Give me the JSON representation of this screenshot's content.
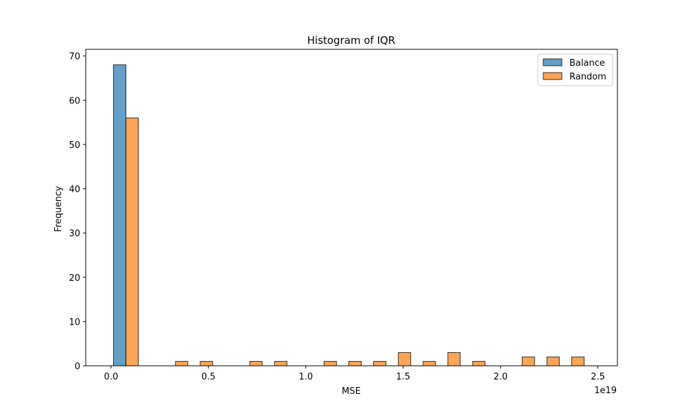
{
  "chart_data": {
    "type": "bar",
    "title": "Histogram of IQR",
    "xlabel": "MSE",
    "ylabel": "Frequency",
    "x_offset_label": "1e19",
    "xlim": [
      -0.13,
      2.6
    ],
    "ylim": [
      0,
      71.5
    ],
    "x_ticks": [
      {
        "value": 0.0,
        "label": "0.0"
      },
      {
        "value": 0.5,
        "label": "0.5"
      },
      {
        "value": 1.0,
        "label": "1.0"
      },
      {
        "value": 1.5,
        "label": "1.5"
      },
      {
        "value": 2.0,
        "label": "2.0"
      },
      {
        "value": 2.5,
        "label": "2.5"
      }
    ],
    "y_ticks": [
      {
        "value": 0,
        "label": "0"
      },
      {
        "value": 10,
        "label": "10"
      },
      {
        "value": 20,
        "label": "20"
      },
      {
        "value": 30,
        "label": "30"
      },
      {
        "value": 40,
        "label": "40"
      },
      {
        "value": 50,
        "label": "50"
      },
      {
        "value": 60,
        "label": "60"
      },
      {
        "value": 70,
        "label": "70"
      }
    ],
    "bin_edges": [
      0.0127,
      0.1399,
      0.267,
      0.3942,
      0.5214,
      0.6485,
      0.7757,
      0.9029,
      1.03,
      1.1572,
      1.2844,
      1.4115,
      1.5387,
      1.6659,
      1.793,
      1.9202,
      2.0474,
      2.1745,
      2.3017,
      2.4289,
      2.556
    ],
    "legend_position": "top-right",
    "series": [
      {
        "name": "Balance",
        "color": "#1f77b4",
        "values": [
          68,
          0,
          0,
          0,
          0,
          0,
          0,
          0,
          0,
          0,
          0,
          0,
          0,
          0,
          0,
          0,
          0,
          0,
          0,
          0
        ]
      },
      {
        "name": "Random",
        "color": "#ff7f0e",
        "values": [
          56,
          0,
          1,
          1,
          0,
          1,
          1,
          0,
          1,
          1,
          1,
          3,
          1,
          3,
          1,
          0,
          2,
          2,
          2,
          0
        ]
      }
    ]
  }
}
